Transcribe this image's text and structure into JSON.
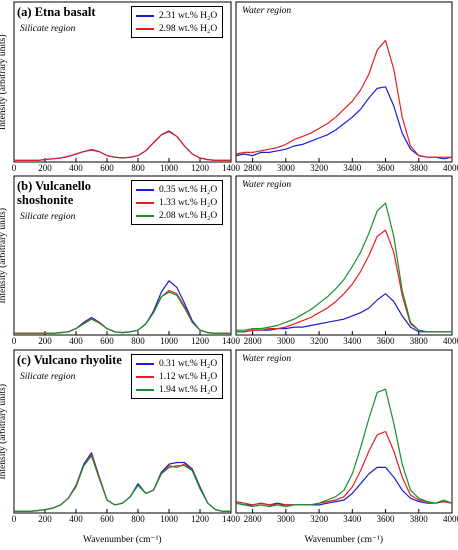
{
  "chart_data": [
    {
      "type": "line",
      "title": "(a) Etna basalt",
      "annotation": "Silicate region",
      "ylabel": "Intensity (arbitrary units)",
      "x": [
        0,
        50,
        100,
        150,
        200,
        250,
        300,
        350,
        400,
        450,
        500,
        550,
        600,
        650,
        700,
        750,
        800,
        850,
        900,
        950,
        1000,
        1050,
        1100,
        1150,
        1200,
        1250,
        1300,
        1350,
        1400
      ],
      "xlim": [
        0,
        1400
      ],
      "xticks": [
        0,
        200,
        400,
        600,
        800,
        1000,
        1200,
        1400
      ],
      "ylim": [
        0,
        100
      ],
      "legend": "upper right",
      "series": [
        {
          "name": "2.31 wt.% H₂O",
          "color": "#1c1cd8",
          "values": [
            1,
            1,
            1,
            1,
            1.5,
            2,
            2.5,
            3.5,
            5,
            6.5,
            7.5,
            6.5,
            4,
            3,
            2.5,
            3,
            4,
            7,
            12,
            17,
            19,
            16,
            10,
            5,
            2.5,
            1.5,
            1,
            1,
            1
          ]
        },
        {
          "name": "2.98 wt.% H₂O",
          "color": "#e02020",
          "values": [
            1,
            1,
            1,
            1,
            1.5,
            2,
            2.5,
            3.5,
            5,
            6.5,
            7.8,
            6.5,
            4,
            3,
            2.5,
            3,
            4,
            7,
            12,
            17,
            19.5,
            16,
            10,
            5,
            2.5,
            1.5,
            1,
            1,
            1
          ]
        }
      ]
    },
    {
      "type": "line",
      "annotation": "Water region",
      "x": [
        2700,
        2750,
        2800,
        2850,
        2900,
        2950,
        3000,
        3050,
        3100,
        3150,
        3200,
        3250,
        3300,
        3350,
        3400,
        3450,
        3500,
        3550,
        3600,
        3650,
        3700,
        3750,
        3800,
        3850,
        3900,
        3950,
        4000
      ],
      "xlim": [
        2700,
        4000
      ],
      "xticks": [
        2800,
        3000,
        3200,
        3400,
        3600,
        3800,
        4000
      ],
      "ylim": [
        0,
        100
      ],
      "series": [
        {
          "name": "2.31 wt.% H₂O",
          "color": "#1c1cd8",
          "values": [
            4,
            5,
            4,
            6,
            6,
            7,
            8,
            10,
            11,
            13,
            15,
            17,
            20,
            24,
            28,
            33,
            40,
            46,
            47,
            35,
            18,
            8,
            4,
            3,
            3,
            2,
            3
          ]
        },
        {
          "name": "2.98 wt.% H₂O",
          "color": "#e02020",
          "values": [
            5,
            6,
            6,
            7,
            8,
            9,
            11,
            14,
            16,
            18,
            21,
            24,
            28,
            33,
            38,
            45,
            55,
            70,
            76,
            58,
            28,
            10,
            4,
            3,
            3,
            3,
            3
          ]
        }
      ]
    },
    {
      "type": "line",
      "title": "(b) Vulcanello\nshoshonite",
      "annotation": "Silicate region",
      "ylabel": "Intensity (arbitrary units)",
      "x": [
        0,
        50,
        100,
        150,
        200,
        250,
        300,
        350,
        400,
        450,
        500,
        550,
        600,
        650,
        700,
        750,
        800,
        850,
        900,
        950,
        1000,
        1050,
        1100,
        1150,
        1200,
        1250,
        1300,
        1350,
        1400
      ],
      "xlim": [
        0,
        1400
      ],
      "xticks": [
        0,
        200,
        400,
        600,
        800,
        1000,
        1200,
        1400
      ],
      "ylim": [
        0,
        100
      ],
      "legend": "upper right",
      "series": [
        {
          "name": "0.35 wt.% H₂O",
          "color": "#1c1cd8",
          "values": [
            1,
            1,
            1,
            1,
            1,
            1,
            1.5,
            2,
            4,
            8,
            11,
            8,
            4,
            2,
            1.5,
            2,
            3,
            7,
            15,
            27,
            34,
            30,
            20,
            9,
            3,
            1.5,
            1,
            1,
            1
          ]
        },
        {
          "name": "1.33 wt.% H₂O",
          "color": "#e02020",
          "values": [
            1,
            1,
            1,
            1,
            1,
            1,
            1.5,
            2,
            4,
            7.5,
            10,
            8,
            4,
            2,
            1.5,
            2,
            3,
            7,
            14,
            24,
            28,
            26,
            18,
            8,
            3,
            1.5,
            1,
            1,
            1
          ]
        },
        {
          "name": "2.08 wt.% H₂O",
          "color": "#16902c",
          "values": [
            1,
            1,
            1,
            1,
            1,
            1,
            1.5,
            2,
            4,
            7,
            10,
            7.5,
            4,
            2,
            1.5,
            2,
            3,
            7,
            14,
            24,
            27,
            25,
            17,
            8,
            3,
            1.5,
            1,
            1,
            1
          ]
        }
      ]
    },
    {
      "type": "line",
      "annotation": "Water region",
      "x": [
        2700,
        2750,
        2800,
        2850,
        2900,
        2950,
        3000,
        3050,
        3100,
        3150,
        3200,
        3250,
        3300,
        3350,
        3400,
        3450,
        3500,
        3550,
        3600,
        3650,
        3700,
        3750,
        3800,
        3850,
        3900,
        3950,
        4000
      ],
      "xlim": [
        2700,
        4000
      ],
      "xticks": [
        2800,
        3000,
        3200,
        3400,
        3600,
        3800,
        4000
      ],
      "ylim": [
        0,
        100
      ],
      "series": [
        {
          "name": "0.35 wt.% H₂O",
          "color": "#1c1cd8",
          "values": [
            2,
            2,
            3,
            3,
            3,
            4,
            4,
            5,
            5,
            6,
            7,
            8,
            9,
            10,
            12,
            14,
            17,
            22,
            26,
            21,
            12,
            5,
            2,
            2,
            2,
            2,
            2
          ]
        },
        {
          "name": "1.33 wt.% H₂O",
          "color": "#e02020",
          "values": [
            2,
            2,
            3,
            3,
            4,
            4,
            5,
            7,
            9,
            11,
            14,
            17,
            21,
            26,
            32,
            40,
            50,
            62,
            66,
            52,
            25,
            7,
            3,
            2,
            2,
            2,
            2
          ]
        },
        {
          "name": "2.08 wt.% H₂O",
          "color": "#16902c",
          "values": [
            3,
            3,
            4,
            4,
            5,
            6,
            8,
            10,
            13,
            16,
            20,
            24,
            29,
            35,
            43,
            52,
            64,
            78,
            83,
            62,
            28,
            8,
            3,
            2,
            2,
            2,
            2
          ]
        }
      ]
    },
    {
      "type": "line",
      "title": "(c) Vulcano rhyolite",
      "annotation": "Silicate region",
      "ylabel": "Intensity (arbitrary units)",
      "xlabel": "Wavenumber (cm⁻¹)",
      "x": [
        0,
        50,
        100,
        150,
        200,
        250,
        300,
        350,
        400,
        450,
        500,
        550,
        600,
        650,
        700,
        750,
        800,
        850,
        900,
        950,
        1000,
        1050,
        1100,
        1150,
        1200,
        1250,
        1300,
        1350,
        1400
      ],
      "xlim": [
        0,
        1400
      ],
      "xticks": [
        0,
        200,
        400,
        600,
        800,
        1000,
        1200,
        1400
      ],
      "ylim": [
        0,
        100
      ],
      "legend": "upper right",
      "series": [
        {
          "name": "0.31 wt.% H₂O",
          "color": "#1c1cd8",
          "values": [
            1,
            1,
            1,
            1.5,
            2,
            3,
            5,
            9,
            17,
            30,
            37,
            22,
            8,
            5,
            6,
            10,
            18,
            12,
            14,
            25,
            30,
            31,
            31,
            27,
            16,
            6,
            2,
            1,
            1
          ]
        },
        {
          "name": "1.12 wt.% H₂O",
          "color": "#e02020",
          "values": [
            1,
            1,
            1,
            1.5,
            2,
            3,
            5,
            9,
            17,
            29,
            36,
            22,
            8,
            5,
            6,
            10,
            17,
            12,
            14,
            24,
            29,
            28,
            30,
            26,
            15,
            6,
            2,
            1,
            1
          ]
        },
        {
          "name": "1.94 wt.% H₂O",
          "color": "#16902c",
          "values": [
            1,
            1,
            1,
            1.5,
            2,
            3,
            5,
            9,
            16,
            29,
            35,
            21,
            8,
            5,
            6,
            10,
            17,
            12,
            14,
            24,
            28,
            29,
            29,
            26,
            15,
            6,
            2,
            1,
            1
          ]
        }
      ]
    },
    {
      "type": "line",
      "annotation": "Water region",
      "xlabel": "Wavenumber (cm⁻¹)",
      "x": [
        2700,
        2750,
        2800,
        2850,
        2900,
        2950,
        3000,
        3050,
        3100,
        3150,
        3200,
        3250,
        3300,
        3350,
        3400,
        3450,
        3500,
        3550,
        3600,
        3650,
        3700,
        3750,
        3800,
        3850,
        3900,
        3950,
        4000
      ],
      "xlim": [
        2700,
        4000
      ],
      "xticks": [
        2800,
        3000,
        3200,
        3400,
        3600,
        3800,
        4000
      ],
      "ylim": [
        0,
        100
      ],
      "series": [
        {
          "name": "0.31 wt.% H₂O",
          "color": "#1c1cd8",
          "values": [
            6,
            5,
            5,
            6,
            5,
            6,
            5,
            5,
            5,
            5,
            5,
            6,
            7,
            8,
            12,
            18,
            24,
            28,
            28,
            22,
            14,
            9,
            7,
            6,
            6,
            7,
            6
          ]
        },
        {
          "name": "1.12 wt.% H₂O",
          "color": "#e02020",
          "values": [
            7,
            6,
            5,
            6,
            5,
            5,
            5,
            5,
            5,
            5,
            6,
            7,
            8,
            10,
            16,
            26,
            38,
            48,
            50,
            38,
            22,
            11,
            8,
            7,
            6,
            7,
            6
          ]
        },
        {
          "name": "1.94 wt.% H₂O",
          "color": "#16902c",
          "values": [
            6,
            5,
            4,
            5,
            4,
            5,
            4,
            5,
            5,
            5,
            6,
            8,
            10,
            14,
            24,
            40,
            58,
            74,
            76,
            55,
            30,
            14,
            9,
            7,
            6,
            8,
            6
          ]
        }
      ]
    }
  ]
}
